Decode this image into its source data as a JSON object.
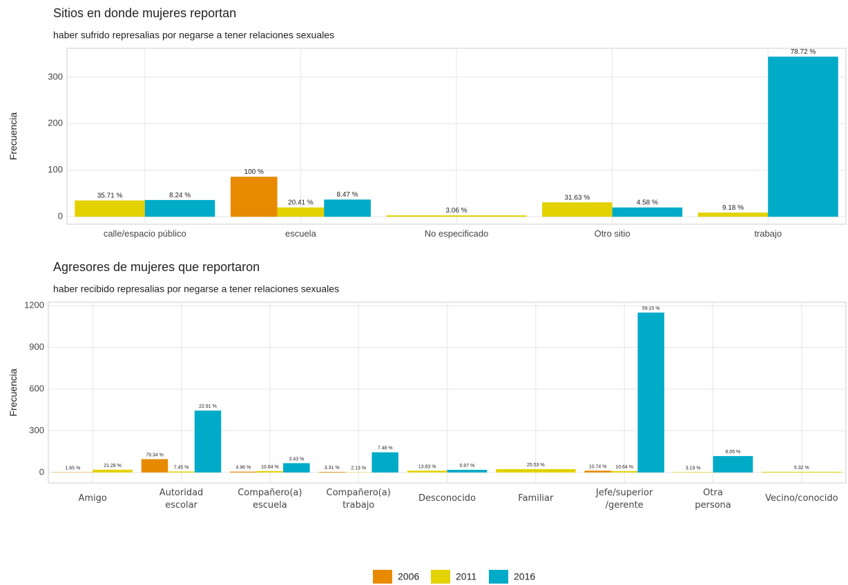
{
  "chart_data": [
    {
      "type": "bar",
      "title": "Sitios en donde mujeres reportan",
      "subtitle": "haber sufrido represalias por negarse a tener relaciones sexuales",
      "y_label": "Frecuencia",
      "categories": [
        "calle/espacio público",
        "escuela",
        "No especificado",
        "Otro sitio",
        "trabajo"
      ],
      "series": [
        {
          "name": "2006",
          "color": "#e88a00",
          "values": [
            null,
            86,
            null,
            null,
            null
          ],
          "labels": [
            null,
            "100 %",
            null,
            null,
            null
          ]
        },
        {
          "name": "2011",
          "color": "#e3d200",
          "values": [
            35,
            20,
            3,
            31,
            9
          ],
          "labels": [
            "35.71 %",
            "20.41 %",
            "3.06 %",
            "31.63 %",
            "9.18 %"
          ]
        },
        {
          "name": "2016",
          "color": "#00abc8",
          "values": [
            36,
            37,
            null,
            20,
            344
          ],
          "labels": [
            "8.24 %",
            "8.47 %",
            null,
            "4.58 %",
            "78.72 %"
          ]
        }
      ],
      "ylim": [
        -16,
        362
      ],
      "yticks": [
        0,
        100,
        200,
        300
      ],
      "grid": true
    },
    {
      "type": "bar",
      "title": "Agresores de mujeres que reportaron",
      "subtitle": "haber recibido represalias por negarse a tener relaciones sexuales",
      "y_label": "Frecuencia",
      "categories": [
        [
          "Amigo"
        ],
        [
          "Autoridad",
          "escolar"
        ],
        [
          "Compañero(a)",
          "escuela"
        ],
        [
          "Compañero(a)",
          "trabajo"
        ],
        [
          "Desconocido"
        ],
        [
          "Familiar"
        ],
        [
          "Jefe/superior",
          "/gerente"
        ],
        [
          "Otra",
          "persona"
        ],
        [
          "Vecino/conocido"
        ]
      ],
      "series": [
        {
          "name": "2006",
          "color": "#e88a00",
          "values": [
            2,
            96,
            6,
            4,
            null,
            null,
            13,
            null,
            null
          ],
          "labels": [
            "1.65 %",
            "79.34 %",
            "4.96 %",
            "3.31 %",
            null,
            null,
            "10.74 %",
            null,
            null
          ]
        },
        {
          "name": "2011",
          "color": "#e3d200",
          "values": [
            20,
            7,
            10,
            2,
            13,
            24,
            10,
            3,
            5
          ],
          "labels": [
            "21.28 %",
            "7.45 %",
            "10.64 %",
            "2.13 %",
            "13.83 %",
            "25.53 %",
            "10.64 %",
            "3.19 %",
            "5.32 %"
          ]
        },
        {
          "name": "2016",
          "color": "#00abc8",
          "values": [
            null,
            445,
            67,
            145,
            19,
            null,
            1150,
            118,
            null
          ],
          "labels": [
            null,
            "22.91 %",
            "3.43 %",
            "7.48 %",
            "0.97 %",
            null,
            "59.15 %",
            "6.05 %",
            null
          ]
        }
      ],
      "ylim": [
        -75,
        1225
      ],
      "yticks": [
        0,
        300,
        600,
        900,
        1200
      ],
      "grid": true
    }
  ]
}
